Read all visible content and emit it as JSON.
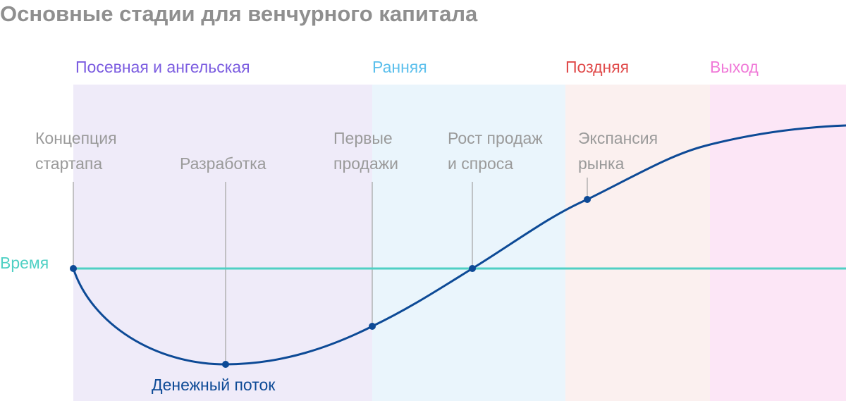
{
  "header": {
    "title": "Основные стадии для венчурного капитала"
  },
  "stages": [
    {
      "label": "Посевная и ангельская"
    },
    {
      "label": "Ранняя"
    },
    {
      "label": "Поздняя"
    },
    {
      "label": "Выход"
    }
  ],
  "milestones": [
    {
      "lines": [
        "Концепция",
        "стартапа"
      ]
    },
    {
      "lines": [
        "Разработка"
      ]
    },
    {
      "lines": [
        "Первые",
        "продажи"
      ]
    },
    {
      "lines": [
        "Рост продаж",
        "и спроса"
      ]
    },
    {
      "lines": [
        "Экспансия",
        "рынка"
      ]
    }
  ],
  "axis_label": "Время",
  "curve_label": "Денежный поток"
}
